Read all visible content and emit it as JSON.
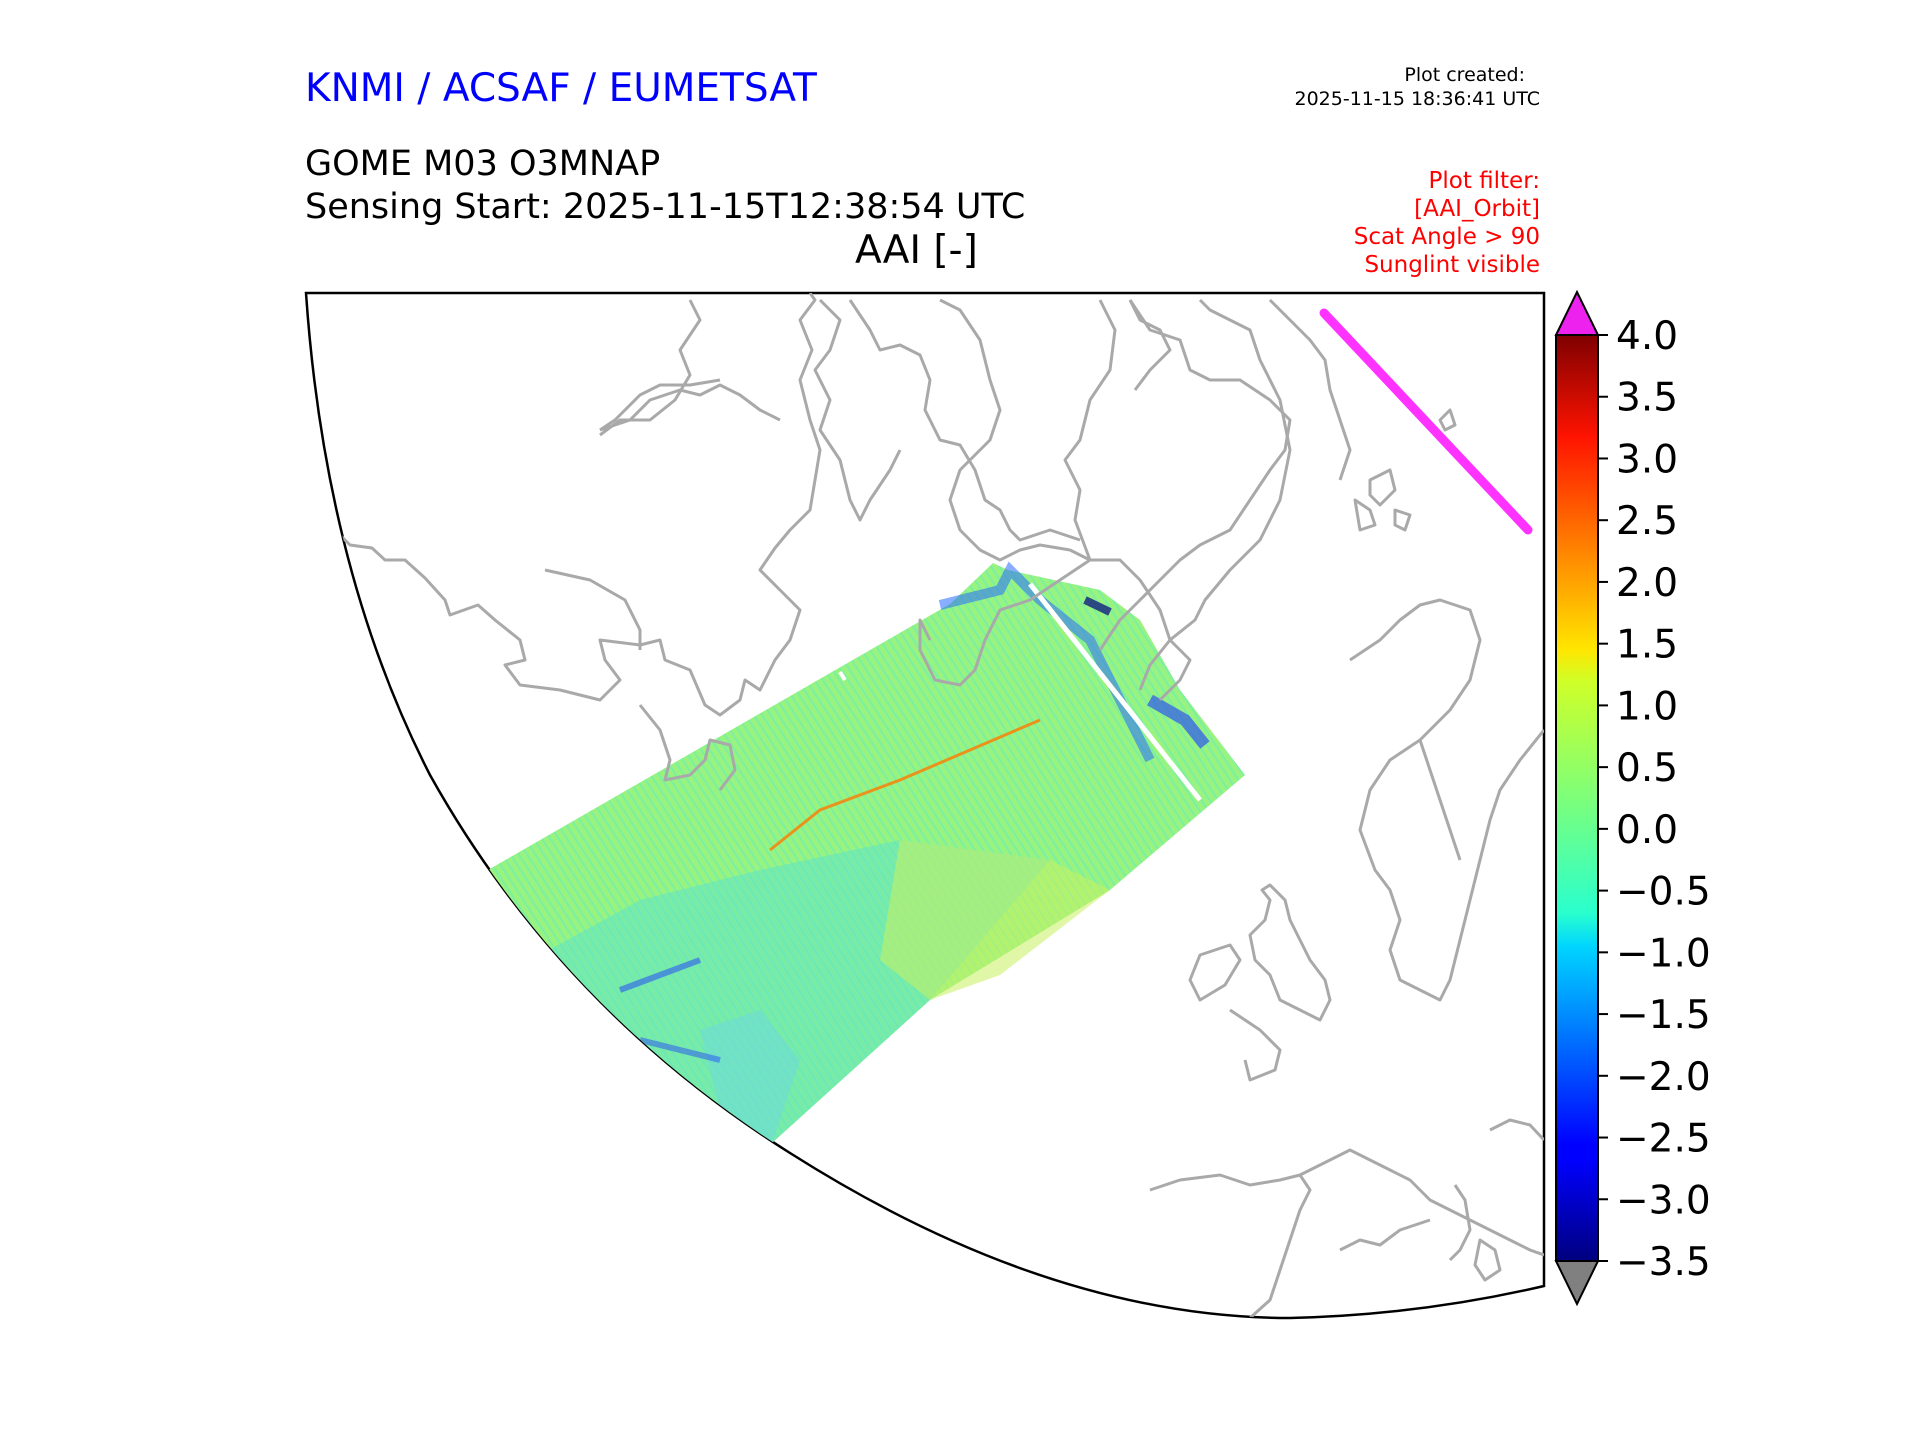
{
  "header": {
    "agency": "KNMI / ACSAF / EUMETSAT",
    "plot_created_label": "Plot created:",
    "plot_created_time": "2025-11-15 18:36:41 UTC",
    "product": "GOME M03 O3MNAP",
    "sensing_start": "Sensing Start: 2025-11-15T12:38:54 UTC",
    "variable": "AAI [-]"
  },
  "plot_filter": {
    "title": "Plot filter:",
    "lines": [
      "[AAI_Orbit]",
      "Scat Angle > 90",
      "Sunglint visible"
    ]
  },
  "colorbar": {
    "ticks": [
      "4.0",
      "3.5",
      "3.0",
      "2.5",
      "2.0",
      "1.5",
      "1.0",
      "0.5",
      "0.0",
      "−0.5",
      "−1.0",
      "−1.5",
      "−2.0",
      "−2.5",
      "−3.0",
      "−3.5"
    ],
    "min": -3.5,
    "max": 4.0,
    "colormap": "jet",
    "over_color": "#ee22ee",
    "under_color": "#808080"
  },
  "map": {
    "coastline_color": "#a9a9a9",
    "orbit_track_color": "#ff33ff",
    "swath_dominant_range": "-1.0 to 1.0"
  }
}
